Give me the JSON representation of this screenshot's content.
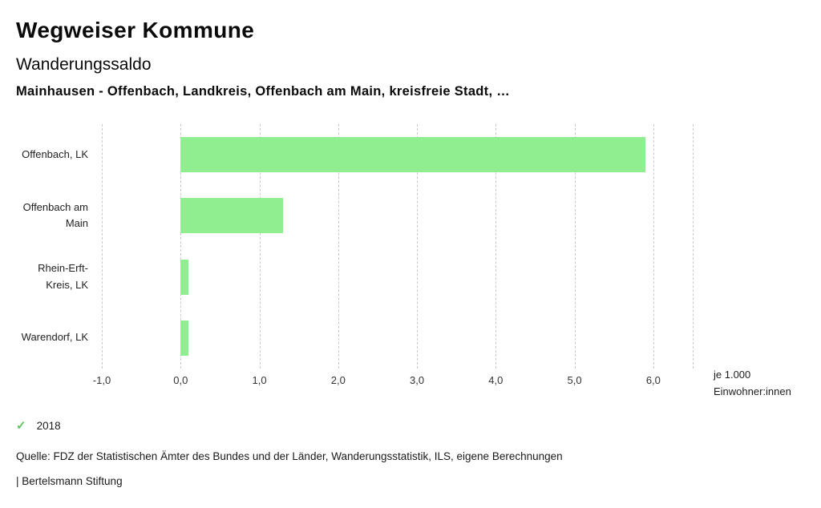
{
  "header": {
    "title": "Wegweiser Kommune",
    "subtitle": "Wanderungssaldo",
    "selection": "Mainhausen - Offenbach, Landkreis, Offenbach am Main, kreisfreie Stadt, …"
  },
  "chart_data": {
    "type": "bar",
    "orientation": "horizontal",
    "title": "Wanderungssaldo",
    "categories": [
      "Offenbach, LK",
      "Offenbach am\nMain",
      "Rhein-Erft-\nKreis, LK",
      "Warendorf, LK"
    ],
    "values": [
      5.9,
      1.3,
      0.1,
      0.1
    ],
    "series_name": "2018",
    "xlim": [
      -1.0,
      6.5
    ],
    "xticks": [
      -1,
      0,
      1,
      2,
      3,
      4,
      5,
      6
    ],
    "xtick_labels": [
      "-1,0",
      "0,0",
      "1,0",
      "2,0",
      "3,0",
      "4,0",
      "5,0",
      "6,0"
    ],
    "gridlines": [
      -1,
      0,
      1,
      2,
      3,
      4,
      5,
      6,
      6.5
    ],
    "grid": "dashed-vertical",
    "unit_label": [
      "je 1.000",
      "Einwohner:innen"
    ],
    "bar_color": "#90ee90"
  },
  "legend": {
    "check_icon": "✓",
    "check_color": "#62c462",
    "year": "2018"
  },
  "footer": {
    "source": "Quelle: FDZ der Statistischen Ämter des Bundes und der Länder, Wanderungsstatistik, ILS, eigene Berechnungen",
    "brand": "| Bertelsmann Stiftung"
  }
}
